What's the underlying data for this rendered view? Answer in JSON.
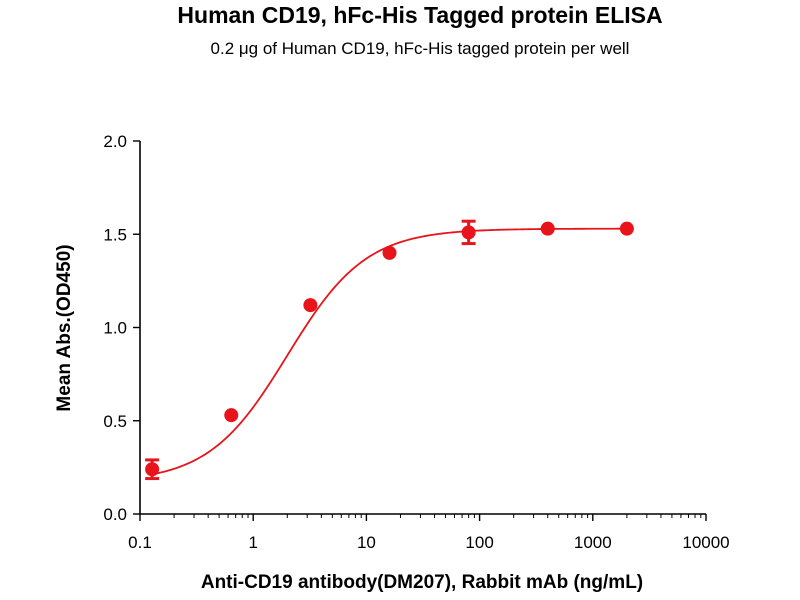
{
  "chart_data": {
    "type": "scatter",
    "title": "Human CD19, hFc-His Tagged protein ELISA",
    "subtitle": "0.2 μg of Human CD19, hFc-His tagged protein per well",
    "xlabel": "Anti-CD19 antibody(DM207), Rabbit mAb (ng/mL)",
    "ylabel": "Mean Abs.(OD450)",
    "xscale": "log",
    "xlim": [
      0.1,
      10000
    ],
    "ylim": [
      0,
      2.0
    ],
    "x_ticks": [
      0.1,
      1,
      10,
      100,
      1000,
      10000
    ],
    "x_tick_labels": [
      "0.1",
      "1",
      "10",
      "100",
      "1000",
      "10000"
    ],
    "y_ticks": [
      0,
      0.5,
      1.0,
      1.5,
      2.0
    ],
    "y_tick_labels": [
      "0.0",
      "0.5",
      "1.0",
      "1.5",
      "2.0"
    ],
    "color": "#e8141b",
    "series": [
      {
        "x": [
          0.128,
          0.64,
          3.2,
          16,
          80,
          400,
          2000
        ],
        "y": [
          0.24,
          0.53,
          1.12,
          1.4,
          1.51,
          1.53,
          1.53
        ],
        "error": [
          0.05,
          0.01,
          0.01,
          0.01,
          0.06,
          0.01,
          0.01
        ]
      }
    ],
    "fit": {
      "model": "4PL",
      "bottom": 0.17,
      "top": 1.53,
      "ec50": 2.0,
      "hill": 1.25
    },
    "grid": false,
    "legend": "none"
  }
}
